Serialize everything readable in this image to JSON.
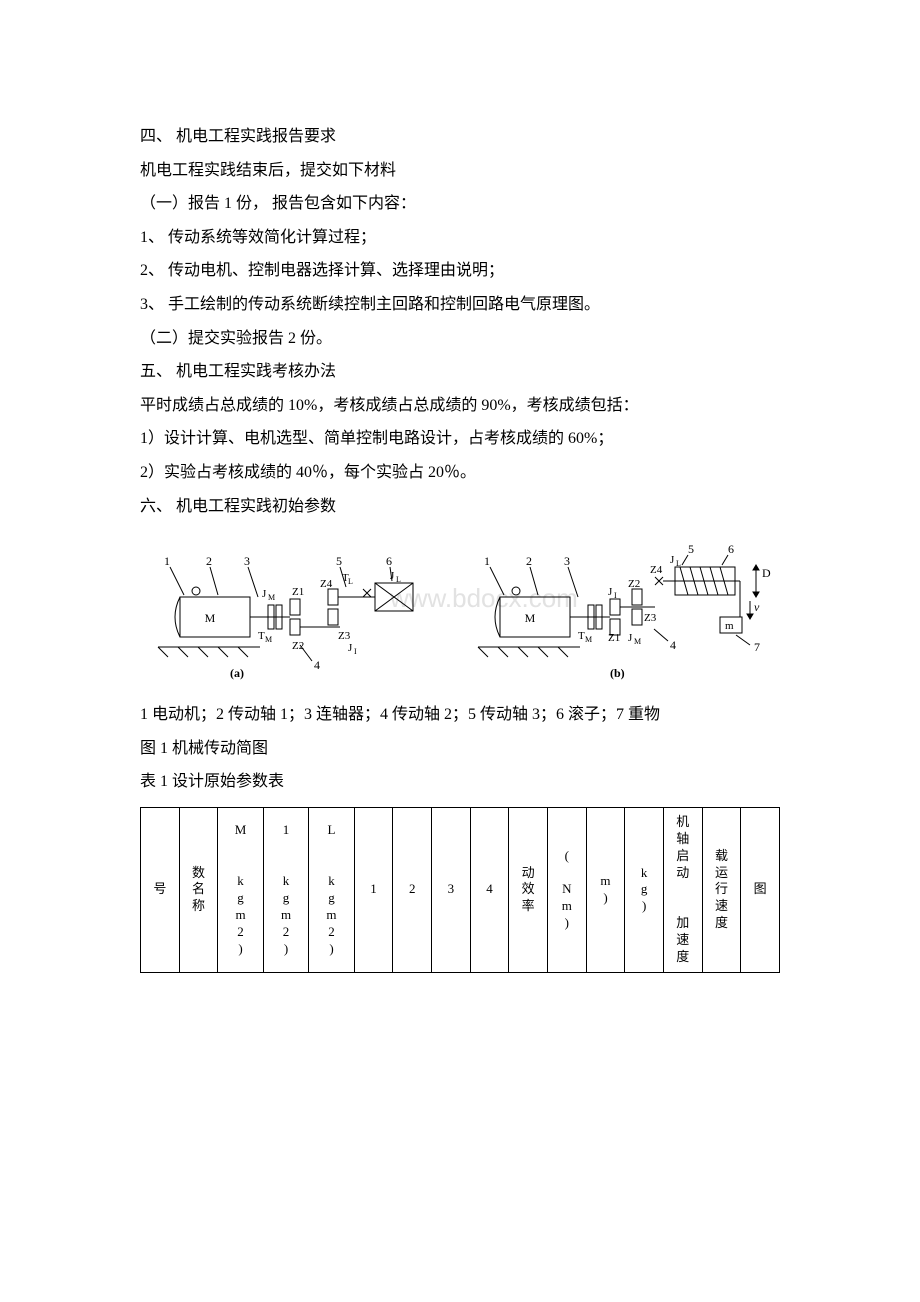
{
  "section4_title": "四、 机电工程实践报告要求",
  "section4_intro": "机电工程实践结束后，提交如下材料",
  "section4_sub1": "（一）报告 1 份， 报告包含如下内容：",
  "section4_item1": "1、 传动系统等效简化计算过程；",
  "section4_item2": "2、 传动电机、控制电器选择计算、选择理由说明；",
  "section4_item3": "3、 手工绘制的传动系统断续控制主回路和控制回路电气原理图。",
  "section4_sub2": "（二）提交实验报告 2 份。",
  "section5_title": "五、 机电工程实践考核办法",
  "section5_intro": "平时成绩占总成绩的 10%，考核成绩占总成绩的 90%，考核成绩包括：",
  "section5_item1": "1）设计计算、电机选型、简单控制电路设计，占考核成绩的 60%；",
  "section5_item2": "2）实验占考核成绩的 40％，每个实验占 20％。",
  "section6_title": "六、 机电工程实践初始参数",
  "fig_caption_parts": "1 电动机；2 传动轴 1；3 连轴器；4 传动轴 2；5 传动轴 3；6 滚子；7 重物",
  "fig_caption_name": "图 1 机械传动简图",
  "table_caption": "表 1 设计原始参数表",
  "table_headers": [
    "号",
    "数名称",
    "M\n\nkg m 2 )",
    "1\n\nkg m 2 )",
    "L\n\nkg m 2 )",
    "1",
    "2",
    "3",
    "4",
    "动效率",
    "(\nN m )",
    "m)",
    "kg )",
    "机轴启动\n\n加速度",
    "载运行速度",
    "图"
  ],
  "diagram": {
    "bg": "#ffffff",
    "stroke": "#000000",
    "watermark": "www.bdocx.com",
    "watermark_color": "#d9d9d9",
    "labels": {
      "a": {
        "nums": [
          "1",
          "2",
          "3",
          "5",
          "6"
        ],
        "mids": [
          "Z1",
          "Z2",
          "Z3",
          "Z4"
        ],
        "J": [
          "J_M",
          "J_I",
          "J_L",
          "T_L",
          "T_M"
        ],
        "M": "M",
        "four": "4",
        "tag": "(a)"
      },
      "b": {
        "nums": [
          "1",
          "2",
          "3",
          "5",
          "6"
        ],
        "mids": [
          "Z1",
          "Z2",
          "Z3",
          "Z4"
        ],
        "J": [
          "J_M",
          "J_I",
          "J_L",
          "T_M"
        ],
        "M": "M",
        "m": "m",
        "D": "D",
        "v": "v",
        "four": "4",
        "seven": "7",
        "tag": "(b)"
      }
    }
  }
}
